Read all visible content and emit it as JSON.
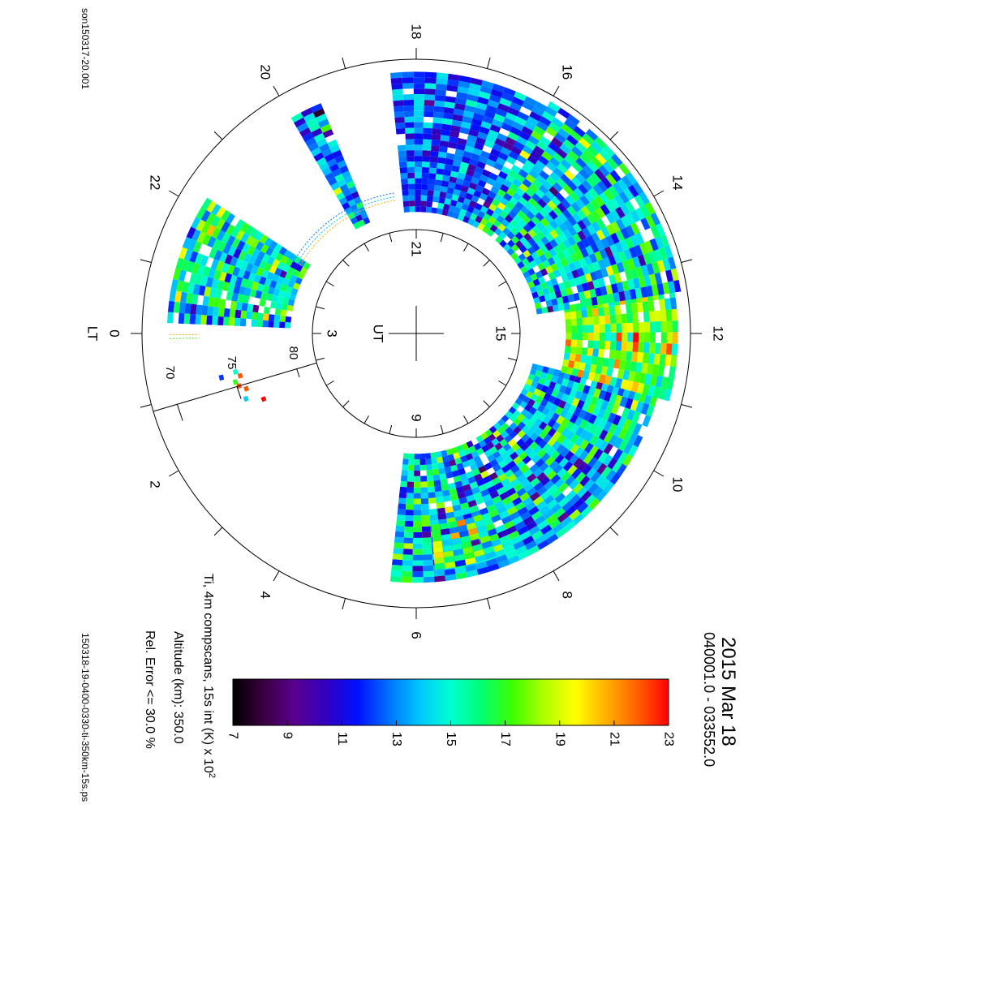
{
  "file_id": "son150317-20.001",
  "file_name": "150318-19-0400-0330-ti-350km-15s.ps",
  "title": "2015 Mar 18",
  "time_range": "040001.0 - 033552.0",
  "info": {
    "quantity": "Ti, 4m compscans, 15s int (K) x 10",
    "quantity_exp": "2",
    "altitude": "Altitude (km): 350.0",
    "rel_error": "Rel. Error <= 30.0 %"
  },
  "colors": {
    "scale": [
      "#000000",
      "#3a0040",
      "#5a0090",
      "#3000c0",
      "#0010ff",
      "#0070ff",
      "#00c8ff",
      "#00ffd0",
      "#00ff70",
      "#40ff00",
      "#b0ff00",
      "#ffff00",
      "#ffb000",
      "#ff6000",
      "#ff0000"
    ]
  },
  "chart_data": {
    "type": "heatmap",
    "projection": "polar",
    "outer_axis": {
      "name": "LT",
      "labels": [
        "0",
        "2",
        "4",
        "6",
        "8",
        "10",
        "12",
        "14",
        "16",
        "18",
        "20",
        "22"
      ]
    },
    "inner_axis": {
      "name": "UT",
      "labels": [
        "3",
        "9",
        "15",
        "21"
      ]
    },
    "latitude_labels": [
      "70",
      "75",
      "80"
    ],
    "colorbar": {
      "min": 7,
      "max": 23,
      "ticks": [
        "7",
        "9",
        "11",
        "13",
        "15",
        "17",
        "19",
        "21",
        "23"
      ]
    },
    "sectors": [
      {
        "lt_start": 5.6,
        "lt_end": 11.0,
        "lat_min": 70,
        "lat_max": 80,
        "mean": 14,
        "spread": 4
      },
      {
        "lt_start": 6.3,
        "lt_end": 7.3,
        "lat_min": 71,
        "lat_max": 74.5,
        "mean": 16,
        "spread": 5
      },
      {
        "lt_start": 11.0,
        "lt_end": 12.6,
        "lat_min": 69,
        "lat_max": 78,
        "mean": 17.5,
        "spread": 4
      },
      {
        "lt_start": 12.6,
        "lt_end": 16.0,
        "lat_min": 68.5,
        "lat_max": 80,
        "mean": 14.5,
        "spread": 4
      },
      {
        "lt_start": 16.0,
        "lt_end": 18.3,
        "lat_min": 69,
        "lat_max": 80,
        "mean": 12.5,
        "spread": 2.5
      },
      {
        "lt_start": 19.5,
        "lt_end": 19.9,
        "lat_min": 70,
        "lat_max": 80,
        "mean": 13,
        "spread": 4
      },
      {
        "lt_start": 21.8,
        "lt_end": 23.7,
        "lat_min": 70,
        "lat_max": 79.5,
        "mean": 15,
        "spread": 4
      }
    ],
    "scatter_cells": [
      {
        "lt": 0.75,
        "lat": 75.0,
        "value": 15
      },
      {
        "lt": 0.85,
        "lat": 75.3,
        "value": 22
      },
      {
        "lt": 0.95,
        "lat": 74.8,
        "value": 17
      },
      {
        "lt": 1.05,
        "lat": 75.0,
        "value": 22
      },
      {
        "lt": 1.15,
        "lat": 75.5,
        "value": 22
      },
      {
        "lt": 0.8,
        "lat": 73.8,
        "value": 12
      },
      {
        "lt": 1.35,
        "lat": 75.2,
        "value": 14
      },
      {
        "lt": 1.5,
        "lat": 76.5,
        "value": 23
      }
    ]
  }
}
